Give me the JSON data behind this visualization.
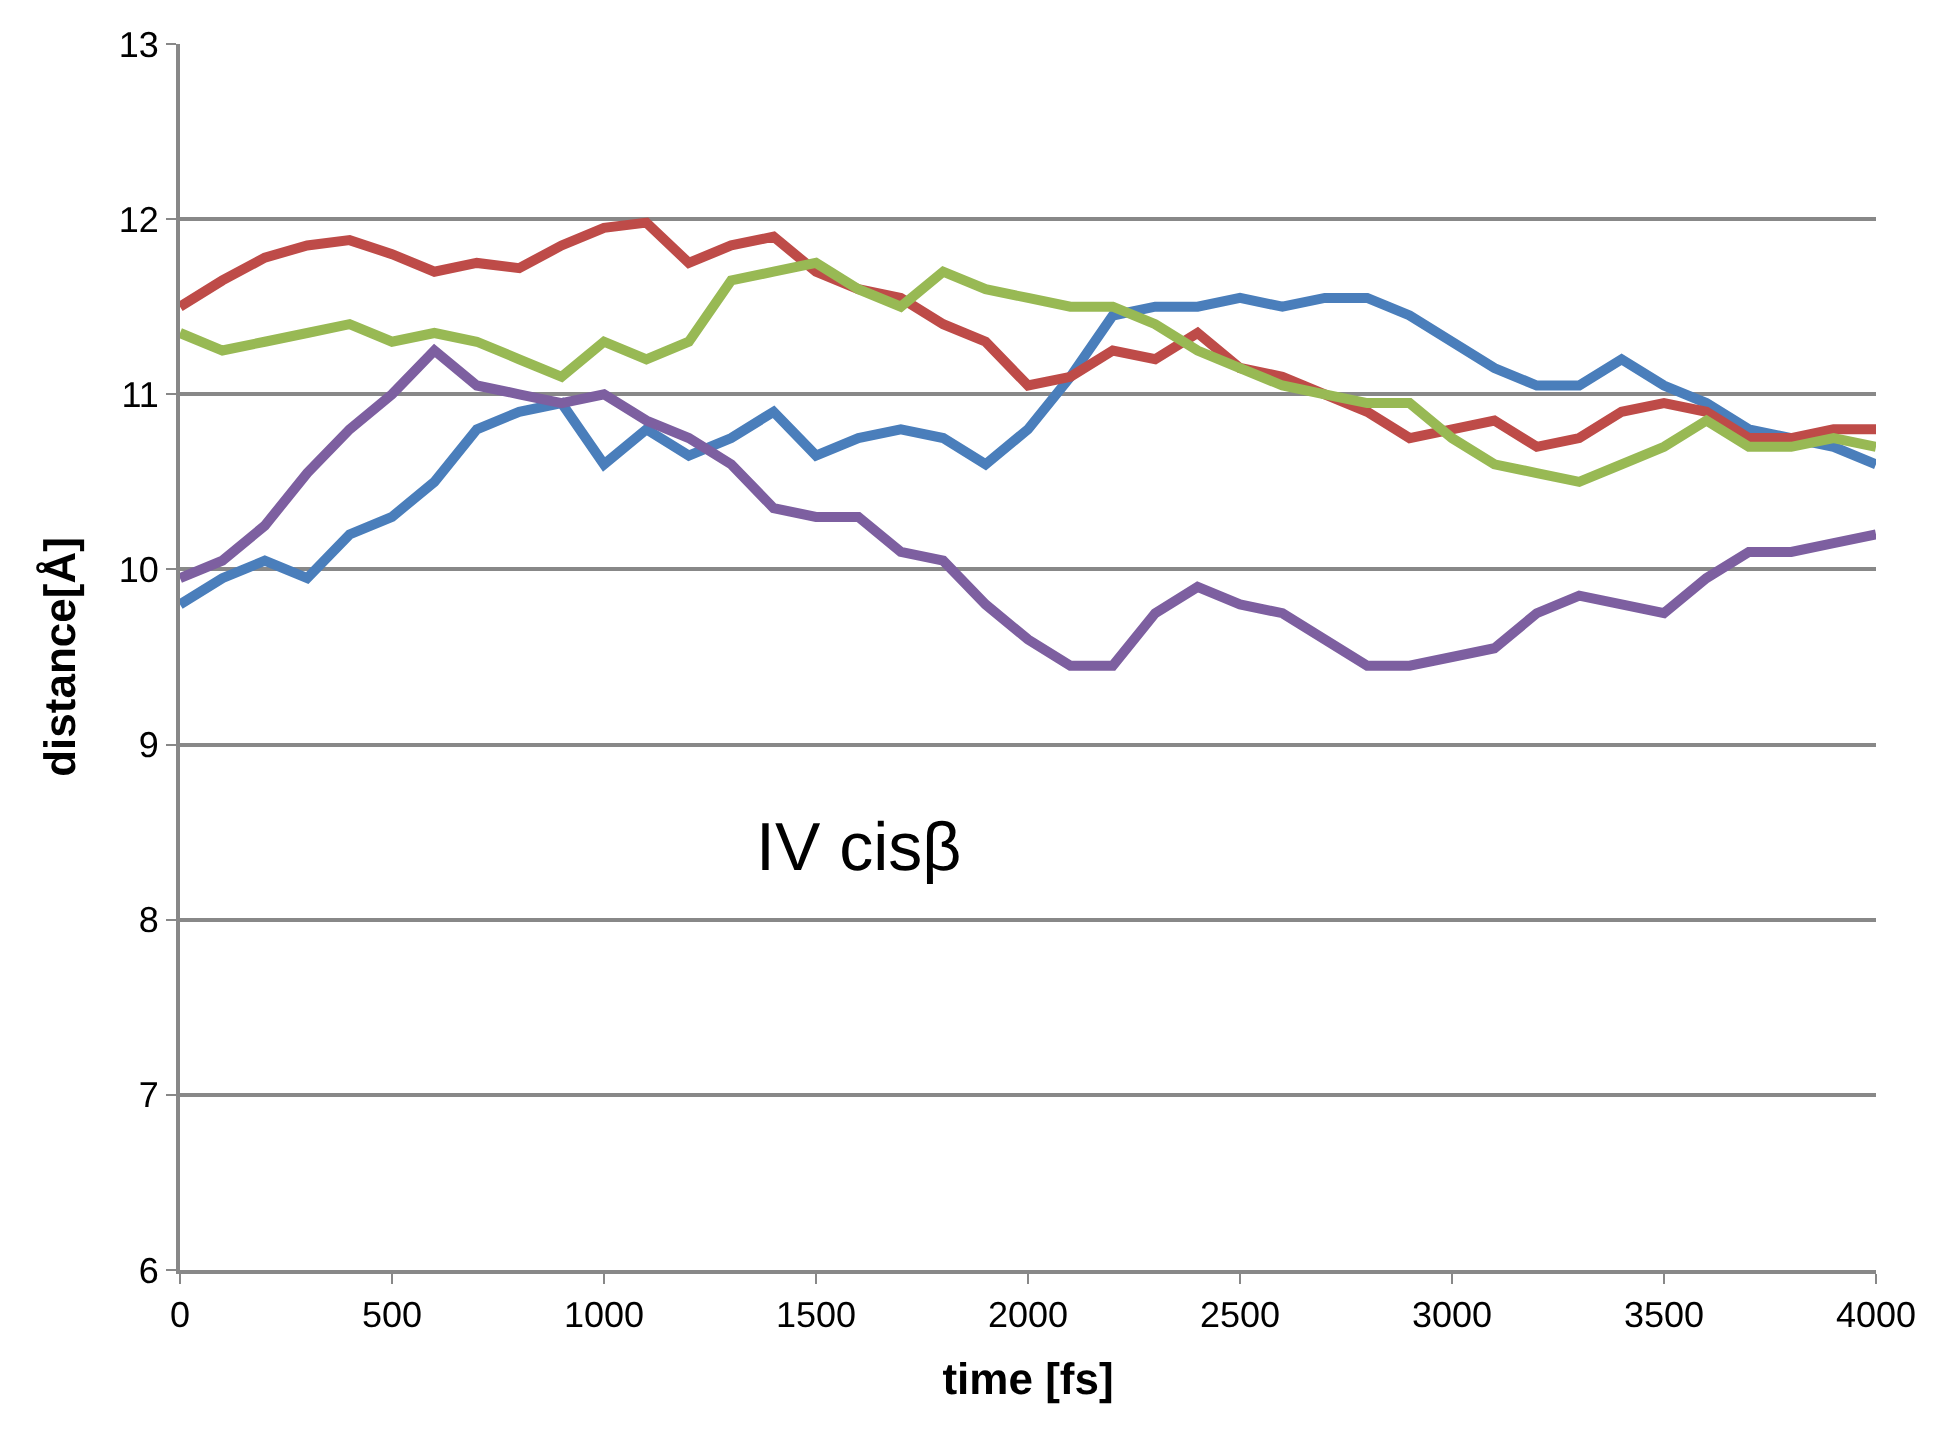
{
  "chart_data": {
    "type": "line",
    "xlabel": "time [fs]",
    "ylabel": "distance[Å]",
    "annotations": [
      "IV cisβ"
    ],
    "x": [
      0,
      100,
      200,
      300,
      400,
      500,
      600,
      700,
      800,
      900,
      1000,
      1100,
      1200,
      1300,
      1400,
      1500,
      1600,
      1700,
      1800,
      1900,
      2000,
      2100,
      2200,
      2300,
      2400,
      2500,
      2600,
      2700,
      2800,
      2900,
      3000,
      3100,
      3200,
      3300,
      3400,
      3500,
      3600,
      3700,
      3800,
      3900,
      4000
    ],
    "series": [
      {
        "color": "#4a7ebb",
        "values": [
          9.8,
          9.95,
          10.05,
          9.95,
          10.2,
          10.3,
          10.5,
          10.8,
          10.9,
          10.95,
          10.6,
          10.8,
          10.65,
          10.75,
          10.9,
          10.65,
          10.75,
          10.8,
          10.75,
          10.6,
          10.8,
          11.1,
          11.45,
          11.5,
          11.5,
          11.55,
          11.5,
          11.55,
          11.55,
          11.45,
          11.3,
          11.15,
          11.05,
          11.05,
          11.2,
          11.05,
          10.95,
          10.8,
          10.75,
          10.7,
          10.6
        ]
      },
      {
        "color": "#be4b48",
        "values": [
          11.5,
          11.65,
          11.78,
          11.85,
          11.88,
          11.8,
          11.7,
          11.75,
          11.72,
          11.85,
          11.95,
          11.98,
          11.75,
          11.85,
          11.9,
          11.7,
          11.6,
          11.55,
          11.4,
          11.3,
          11.05,
          11.1,
          11.25,
          11.2,
          11.35,
          11.15,
          11.1,
          11.0,
          10.9,
          10.75,
          10.8,
          10.85,
          10.7,
          10.75,
          10.9,
          10.95,
          10.9,
          10.75,
          10.75,
          10.8,
          10.8
        ]
      },
      {
        "color": "#98b954",
        "values": [
          11.35,
          11.25,
          11.3,
          11.35,
          11.4,
          11.3,
          11.35,
          11.3,
          11.2,
          11.1,
          11.3,
          11.2,
          11.3,
          11.65,
          11.7,
          11.75,
          11.6,
          11.5,
          11.7,
          11.6,
          11.55,
          11.5,
          11.5,
          11.4,
          11.25,
          11.15,
          11.05,
          11.0,
          10.95,
          10.95,
          10.75,
          10.6,
          10.55,
          10.5,
          10.6,
          10.7,
          10.85,
          10.7,
          10.7,
          10.75,
          10.7
        ]
      },
      {
        "color": "#7d5fa0",
        "values": [
          9.95,
          10.05,
          10.25,
          10.55,
          10.8,
          11.0,
          11.25,
          11.05,
          11.0,
          10.95,
          11.0,
          10.85,
          10.75,
          10.6,
          10.35,
          10.3,
          10.3,
          10.1,
          10.05,
          9.8,
          9.6,
          9.45,
          9.45,
          9.75,
          9.9,
          9.8,
          9.75,
          9.6,
          9.45,
          9.45,
          9.5,
          9.55,
          9.75,
          9.85,
          9.8,
          9.75,
          9.95,
          10.1,
          10.1,
          10.15,
          10.2
        ]
      }
    ],
    "xlim": [
      0,
      4000
    ],
    "xticks": [
      0,
      500,
      1000,
      1500,
      2000,
      2500,
      3000,
      3500,
      4000
    ],
    "ylim": [
      6,
      13
    ],
    "yticks": [
      6,
      7,
      8,
      9,
      10,
      11,
      12,
      13
    ],
    "grid": "y",
    "marker": "none",
    "line_style": "solid"
  }
}
